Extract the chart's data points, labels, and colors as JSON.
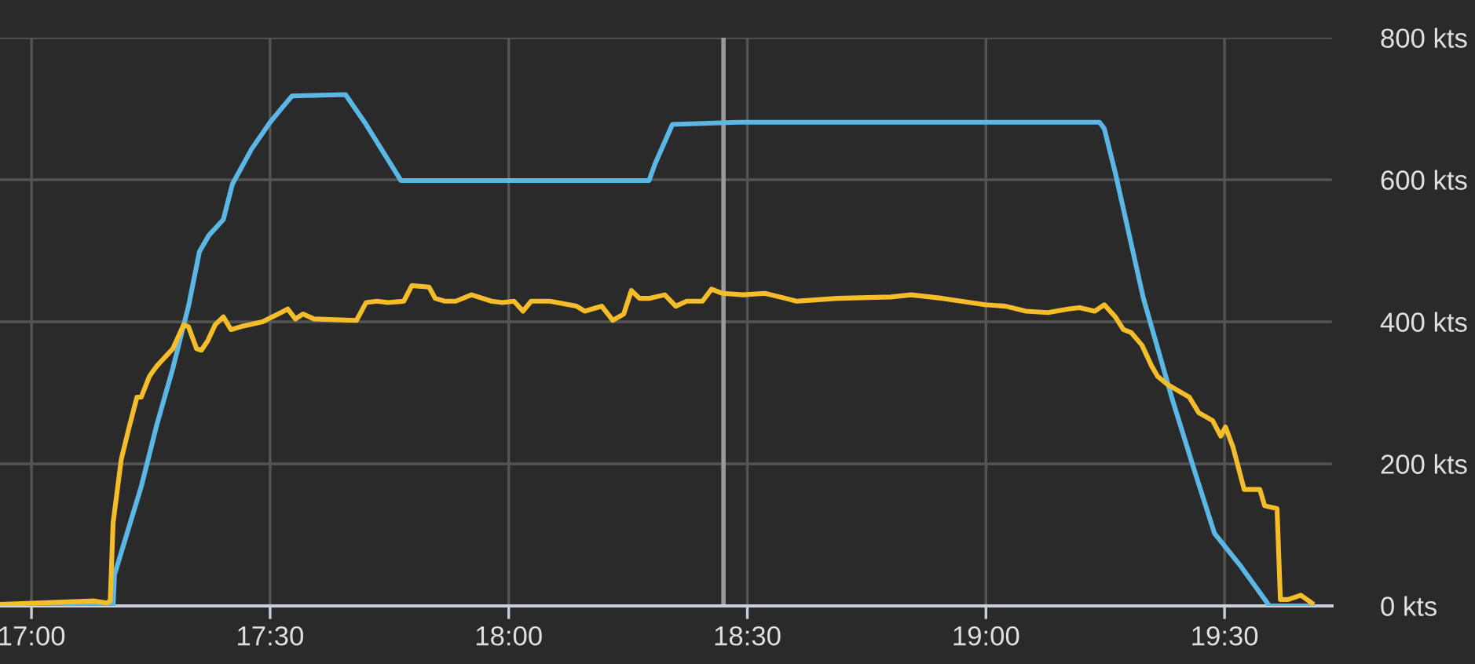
{
  "chart_data": {
    "type": "line",
    "xlim": [
      16.934,
      19.725
    ],
    "xticks": [
      {
        "value": 17,
        "label": "17:00"
      },
      {
        "value": 17.5,
        "label": "17:30"
      },
      {
        "value": 18,
        "label": "18:00"
      },
      {
        "value": 18.5,
        "label": "18:30"
      },
      {
        "value": 19,
        "label": "19:00"
      },
      {
        "value": 19.5,
        "label": "19:30"
      }
    ],
    "ylim": [
      0,
      800
    ],
    "yticks": [
      {
        "value": 0,
        "label": "0 kts"
      },
      {
        "value": 200,
        "label": "200 kts"
      },
      {
        "value": 400,
        "label": "400 kts"
      },
      {
        "value": 600,
        "label": "600 kts"
      },
      {
        "value": 800,
        "label": "800 kts"
      }
    ],
    "grid": true,
    "legend": false,
    "ref_lines": [
      {
        "axis": "x",
        "value": 18.45,
        "color": "#9a9a9a"
      }
    ],
    "series": [
      {
        "color": "#5ab7e6",
        "x": [
          16.934,
          17.171,
          17.174,
          17.197,
          17.23,
          17.263,
          17.296,
          17.329,
          17.352,
          17.372,
          17.402,
          17.421,
          17.461,
          17.5,
          17.527,
          17.546,
          17.658,
          17.698,
          17.774,
          17.922,
          18.294,
          18.307,
          18.343,
          18.481,
          19.238,
          19.248,
          19.271,
          19.33,
          19.39,
          19.439,
          19.479,
          19.535,
          19.594,
          19.683
        ],
        "values": [
          0,
          0,
          44,
          95,
          168,
          256,
          334,
          422,
          499,
          522,
          544,
          594,
          643,
          681,
          703,
          718,
          720,
          681,
          599,
          599,
          599,
          623,
          678,
          681,
          681,
          672,
          610,
          433,
          292,
          186,
          102,
          55,
          0,
          0
        ]
      },
      {
        "color": "#f5bd2a",
        "x": [
          16.934,
          17.132,
          17.158,
          17.165,
          17.171,
          17.188,
          17.204,
          17.221,
          17.23,
          17.247,
          17.253,
          17.263,
          17.296,
          17.319,
          17.329,
          17.346,
          17.356,
          17.369,
          17.385,
          17.402,
          17.418,
          17.438,
          17.484,
          17.517,
          17.537,
          17.553,
          17.569,
          17.592,
          17.681,
          17.701,
          17.724,
          17.747,
          17.78,
          17.797,
          17.833,
          17.846,
          17.866,
          17.889,
          17.922,
          17.964,
          17.987,
          18.011,
          18.03,
          18.047,
          18.086,
          18.142,
          18.159,
          18.195,
          18.218,
          18.241,
          18.257,
          18.274,
          18.294,
          18.327,
          18.35,
          18.373,
          18.406,
          18.425,
          18.448,
          18.491,
          18.537,
          18.58,
          18.603,
          18.689,
          18.801,
          18.843,
          18.909,
          18.998,
          19.041,
          19.084,
          19.13,
          19.172,
          19.196,
          19.228,
          19.248,
          19.271,
          19.288,
          19.304,
          19.327,
          19.347,
          19.36,
          19.38,
          19.403,
          19.426,
          19.446,
          19.475,
          19.492,
          19.502,
          19.518,
          19.541,
          19.574,
          19.584,
          19.61,
          19.617,
          19.633,
          19.66,
          19.683
        ],
        "values": [
          2,
          7,
          4,
          7,
          117,
          206,
          250,
          294,
          294,
          323,
          329,
          338,
          362,
          396,
          393,
          362,
          360,
          373,
          396,
          407,
          389,
          393,
          400,
          411,
          418,
          404,
          411,
          404,
          402,
          427,
          429,
          427,
          429,
          451,
          449,
          433,
          429,
          429,
          438,
          429,
          427,
          429,
          415,
          429,
          429,
          422,
          415,
          422,
          402,
          411,
          444,
          433,
          433,
          438,
          422,
          429,
          429,
          446,
          440,
          438,
          440,
          433,
          429,
          433,
          435,
          438,
          433,
          424,
          422,
          415,
          413,
          418,
          420,
          415,
          424,
          407,
          389,
          385,
          367,
          338,
          323,
          312,
          303,
          294,
          272,
          261,
          239,
          252,
          223,
          164,
          164,
          141,
          137,
          9,
          9,
          15,
          4
        ]
      }
    ]
  }
}
